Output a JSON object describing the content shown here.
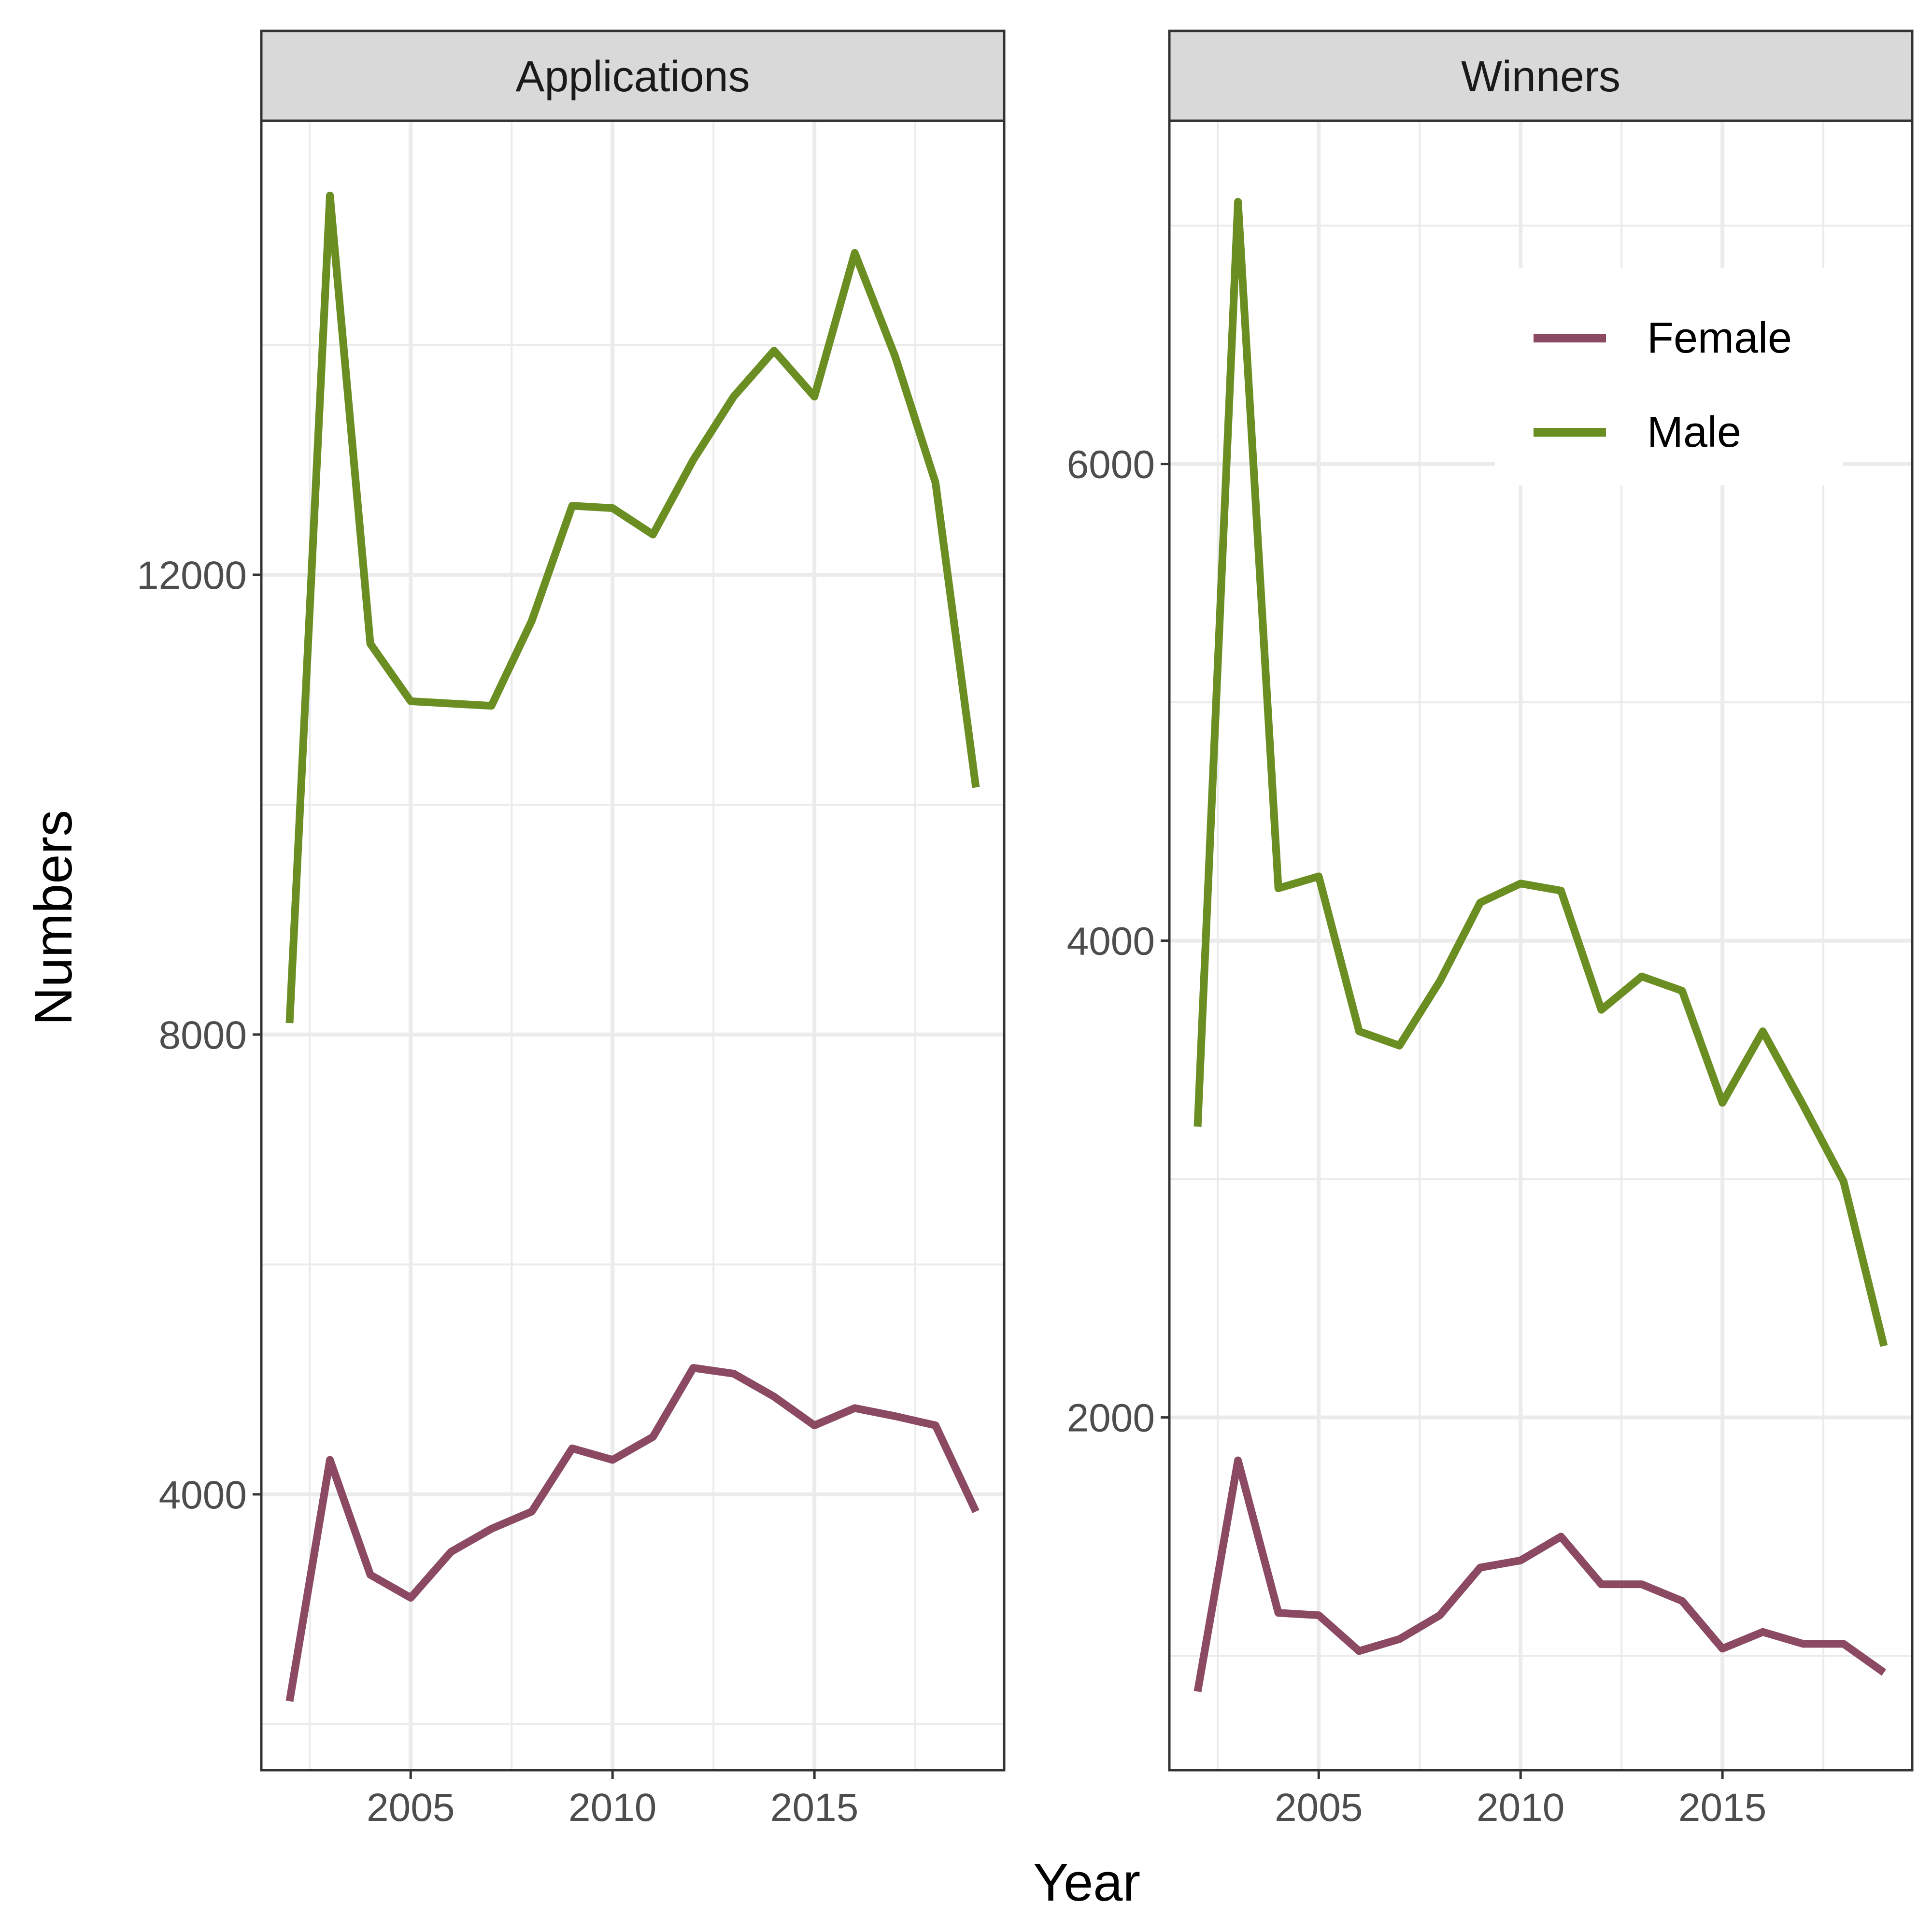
{
  "chart_data": {
    "type": "line",
    "xlabel": "Year",
    "ylabel": "Numbers",
    "colors": {
      "Female": "#8B4A62",
      "Male": "#6B8E23"
    },
    "legend": {
      "placement": "top-right",
      "entries": [
        "Female",
        "Male"
      ]
    },
    "grid": true,
    "facets": [
      {
        "title": "Applications",
        "x": [
          2002,
          2003,
          2004,
          2005,
          2006,
          2007,
          2008,
          2009,
          2010,
          2011,
          2012,
          2013,
          2014,
          2015,
          2016,
          2017,
          2018,
          2019
        ],
        "xlim": [
          2001.3,
          2019.7
        ],
        "xticks": [
          2005,
          2010,
          2015
        ],
        "xtick_labels": [
          "2005",
          "2010",
          "2015"
        ],
        "ylim": [
          1600,
          15950
        ],
        "yticks": [
          4000,
          8000,
          12000
        ],
        "ytick_labels": [
          "4000",
          "8000",
          "12000"
        ],
        "yminor": [
          2000,
          6000,
          10000,
          14000
        ],
        "series": [
          {
            "name": "Female",
            "values": [
              2200,
              4300,
              3300,
              3100,
              3500,
              3700,
              3850,
              4400,
              4300,
              4500,
              5100,
              5050,
              4850,
              4600,
              4750,
              4680,
              4600,
              3850
            ]
          },
          {
            "name": "Male",
            "values": [
              8100,
              15300,
              11400,
              10900,
              10880,
              10860,
              11600,
              12600,
              12580,
              12350,
              13000,
              13550,
              13950,
              13550,
              14800,
              13900,
              12800,
              10150
            ]
          }
        ]
      },
      {
        "title": "Winners",
        "x": [
          2002,
          2003,
          2004,
          2005,
          2006,
          2007,
          2008,
          2009,
          2010,
          2011,
          2012,
          2013,
          2014,
          2015,
          2016,
          2017,
          2018,
          2019
        ],
        "xlim": [
          2001.3,
          2019.7
        ],
        "xticks": [
          2005,
          2010,
          2015
        ],
        "xtick_labels": [
          "2005",
          "2010",
          "2015"
        ],
        "ylim": [
          520,
          7440
        ],
        "yticks": [
          2000,
          4000,
          6000
        ],
        "ytick_labels": [
          "2000",
          "4000",
          "6000"
        ],
        "yminor": [
          1000,
          3000,
          5000,
          7000
        ],
        "series": [
          {
            "name": "Female",
            "values": [
              850,
              1820,
              1180,
              1170,
              1020,
              1070,
              1170,
              1370,
              1400,
              1500,
              1300,
              1300,
              1230,
              1030,
              1100,
              1050,
              1050,
              930
            ]
          },
          {
            "name": "Male",
            "values": [
              3220,
              7100,
              4220,
              4270,
              3620,
              3560,
              3830,
              4160,
              4240,
              4210,
              3710,
              3850,
              3790,
              3320,
              3620,
              3310,
              2990,
              2300
            ]
          }
        ]
      }
    ]
  }
}
